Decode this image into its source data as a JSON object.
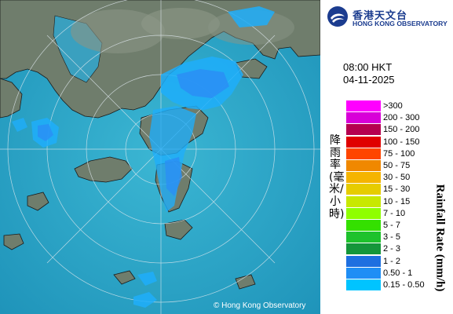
{
  "copyright": "© Hong Kong Observatory",
  "logo": {
    "name_cn": "香港天文台",
    "name_en": "HONG KONG OBSERVATORY",
    "mark_icon": "hko-logo-icon"
  },
  "timestamp": {
    "time": "08:00 HKT",
    "date": "04-11-2025"
  },
  "legend": {
    "label_cn": "降雨率(毫米/小時)",
    "label_en": "Rainfall Rate (mm/h)",
    "items": [
      {
        "label": ">300",
        "color": "#ff00ff"
      },
      {
        "label": "200 - 300",
        "color": "#d800d8"
      },
      {
        "label": "150 - 200",
        "color": "#b5004f"
      },
      {
        "label": "100 - 150",
        "color": "#e00000"
      },
      {
        "label": "75 - 100",
        "color": "#ff4500"
      },
      {
        "label": "50 - 75",
        "color": "#f08800"
      },
      {
        "label": "30 - 50",
        "color": "#f5b400"
      },
      {
        "label": "15 - 30",
        "color": "#e6cc00"
      },
      {
        "label": "10 - 15",
        "color": "#c8e800"
      },
      {
        "label": "7 - 10",
        "color": "#8fff00"
      },
      {
        "label": "5 - 7",
        "color": "#34e000"
      },
      {
        "label": "3 - 5",
        "color": "#1ec22c"
      },
      {
        "label": "2 - 3",
        "color": "#15963a"
      },
      {
        "label": "1 - 2",
        "color": "#1e6fe0"
      },
      {
        "label": "0.50 - 1",
        "color": "#1f8ef5"
      },
      {
        "label": "0.15 - 0.50",
        "color": "#00c4ff"
      }
    ]
  },
  "map_colors": {
    "sea": "#2aa7c8",
    "land": "#6f7d6c",
    "rain_light": "#1faefa",
    "rain_medium": "#2a8ef5"
  }
}
